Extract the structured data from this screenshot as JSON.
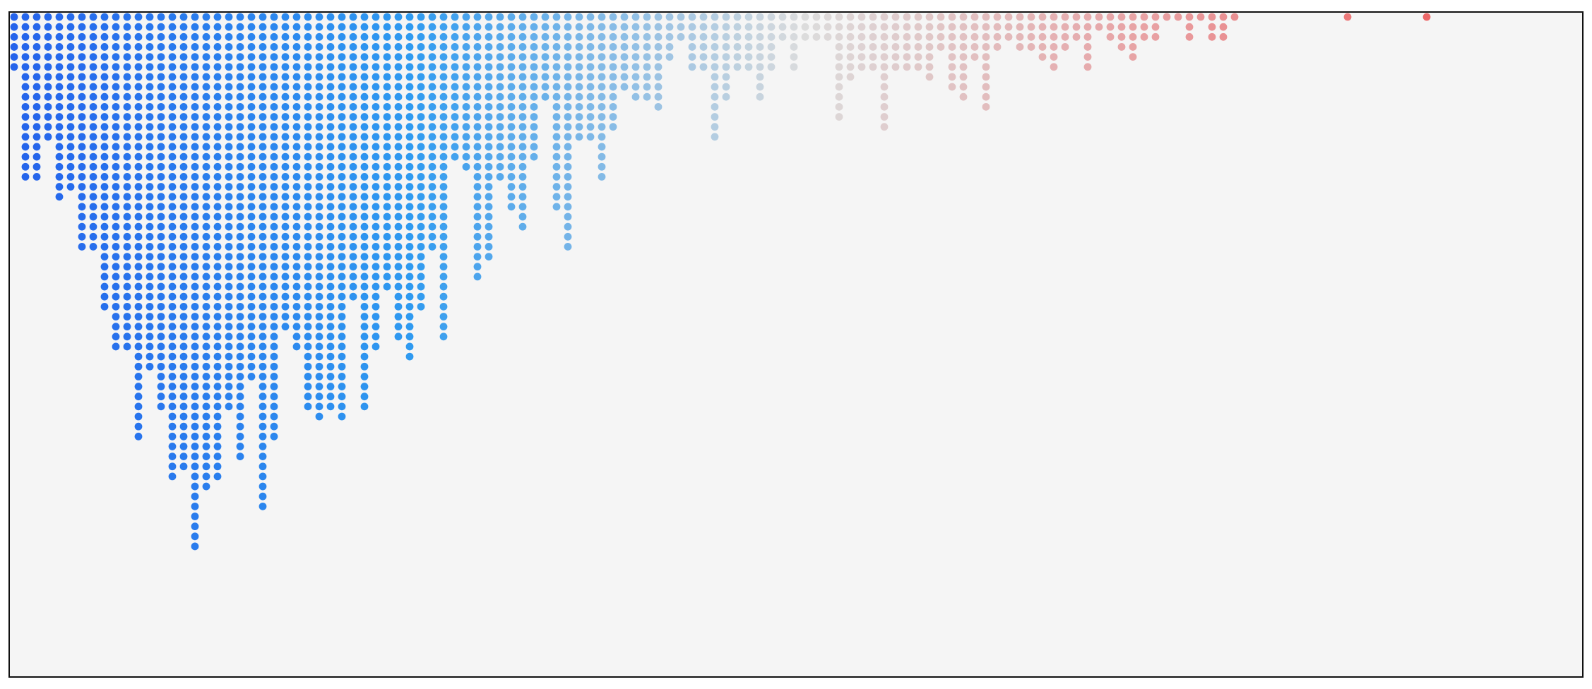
{
  "chart_data": {
    "type": "dot-histogram",
    "title": "",
    "xlabel": "",
    "ylabel": "",
    "axes_visible": false,
    "grid": false,
    "legend": "none",
    "x_start": 0,
    "x_step": 1,
    "columns": [
      6,
      17,
      17,
      13,
      19,
      18,
      24,
      24,
      30,
      34,
      34,
      43,
      36,
      40,
      47,
      46,
      54,
      48,
      47,
      40,
      45,
      37,
      50,
      43,
      32,
      34,
      40,
      41,
      40,
      41,
      29,
      40,
      34,
      28,
      33,
      35,
      30,
      24,
      33,
      15,
      16,
      27,
      25,
      17,
      20,
      22,
      15,
      9,
      20,
      24,
      13,
      13,
      17,
      12,
      8,
      9,
      9,
      10,
      5,
      3,
      6,
      6,
      13,
      9,
      6,
      6,
      9,
      6,
      3,
      6,
      3,
      3,
      3,
      11,
      7,
      6,
      6,
      12,
      6,
      6,
      6,
      7,
      4,
      8,
      9,
      5,
      10,
      4,
      3,
      4,
      4,
      5,
      6,
      4,
      3,
      6,
      2,
      3,
      4,
      5,
      3,
      3,
      1,
      1,
      3,
      1,
      3,
      3,
      1,
      0,
      0,
      0,
      0,
      0,
      0,
      0,
      0,
      0,
      1,
      0,
      0,
      0,
      0,
      0,
      0,
      1,
      0,
      0,
      0,
      0,
      0,
      0,
      0,
      0,
      0,
      0,
      0,
      0,
      0,
      0,
      0
    ],
    "color_scale": {
      "type": "diverging",
      "low": "#2563eb",
      "low_mid": "#2f9af0",
      "mid": "#dcdcdc",
      "high_mid": "#e8a0a2",
      "high": "#ef4444"
    },
    "plot_background": "#f5f5f5",
    "frame_color": "#111111"
  }
}
